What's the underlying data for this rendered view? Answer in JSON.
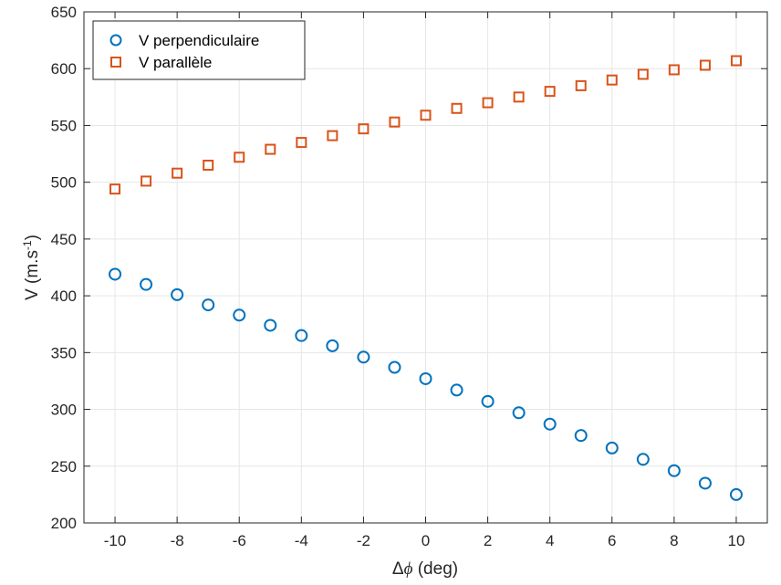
{
  "chart_data": {
    "type": "scatter",
    "xlabel": "Δϕ (deg)",
    "xlabel_symbol": "Δ",
    "xlabel_var": "ϕ",
    "xlabel_rest": " (deg)",
    "ylabel": "V (m.s-1)",
    "ylabel_main": "V (m.s",
    "ylabel_sup": "-1",
    "ylabel_end": ")",
    "xlim": [
      -11,
      11
    ],
    "ylim": [
      200,
      650
    ],
    "xticks": [
      -10,
      -8,
      -6,
      -4,
      -2,
      0,
      2,
      4,
      6,
      8,
      10
    ],
    "yticks": [
      200,
      250,
      300,
      350,
      400,
      450,
      500,
      550,
      600,
      650
    ],
    "grid": true,
    "legend_position": "top-left",
    "x": [
      -10,
      -9,
      -8,
      -7,
      -6,
      -5,
      -4,
      -3,
      -2,
      -1,
      0,
      1,
      2,
      3,
      4,
      5,
      6,
      7,
      8,
      9,
      10
    ],
    "series": [
      {
        "name": "V perpendiculaire",
        "marker": "circle",
        "color": "#0072BD",
        "values": [
          419,
          410,
          401,
          392,
          383,
          374,
          365,
          356,
          346,
          337,
          327,
          317,
          307,
          297,
          287,
          277,
          266,
          256,
          246,
          235,
          225
        ]
      },
      {
        "name": "V parallèle",
        "marker": "square",
        "color": "#D95319",
        "values": [
          494,
          501,
          508,
          515,
          522,
          529,
          535,
          541,
          547,
          553,
          559,
          565,
          570,
          575,
          580,
          585,
          590,
          595,
          599,
          603,
          607
        ]
      }
    ]
  }
}
